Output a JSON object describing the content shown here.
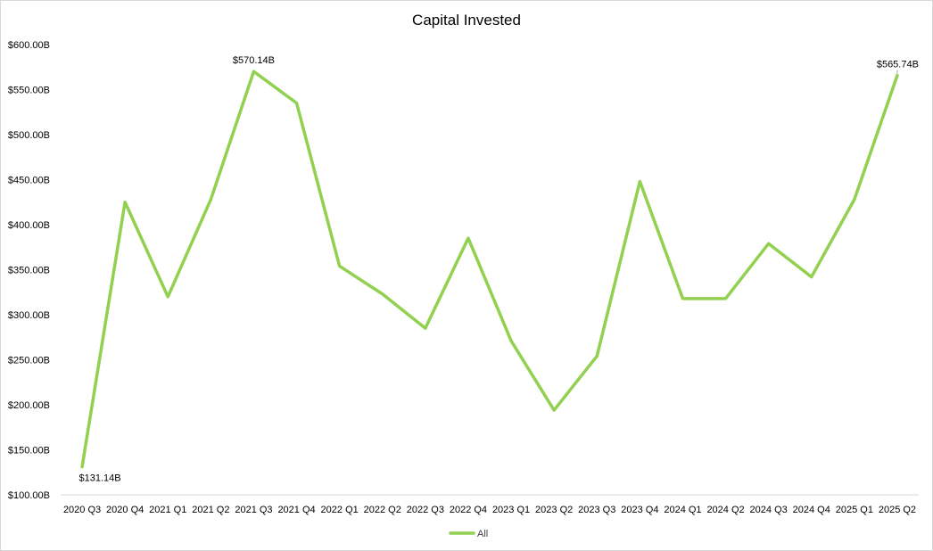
{
  "chart_data": {
    "type": "line",
    "title": "Capital Invested",
    "xlabel": "",
    "ylabel": "",
    "categories": [
      "2020 Q3",
      "2020 Q4",
      "2021 Q1",
      "2021 Q2",
      "2021 Q3",
      "2021 Q4",
      "2022 Q1",
      "2022 Q2",
      "2022 Q3",
      "2022 Q4",
      "2023 Q1",
      "2023 Q2",
      "2023 Q3",
      "2023 Q4",
      "2024 Q1",
      "2024 Q2",
      "2024 Q3",
      "2024 Q4",
      "2025 Q1",
      "2025 Q2"
    ],
    "y_ticks": [
      "$100.00B",
      "$150.00B",
      "$200.00B",
      "$250.00B",
      "$300.00B",
      "$350.00B",
      "$400.00B",
      "$450.00B",
      "$500.00B",
      "$550.00B",
      "$600.00B"
    ],
    "ylim": [
      100,
      600
    ],
    "grid": false,
    "legend_position": "bottom",
    "series": [
      {
        "name": "All",
        "color": "#92d050",
        "values": [
          131.14,
          425,
          320,
          428,
          570.14,
          535,
          354,
          323,
          285,
          385,
          271,
          194,
          254,
          448,
          318,
          318,
          379,
          342,
          428,
          565.74
        ]
      }
    ],
    "data_labels": [
      {
        "index": 0,
        "text": "$131.14B"
      },
      {
        "index": 4,
        "text": "$570.14B"
      },
      {
        "index": 19,
        "text": "$565.74B"
      }
    ]
  }
}
